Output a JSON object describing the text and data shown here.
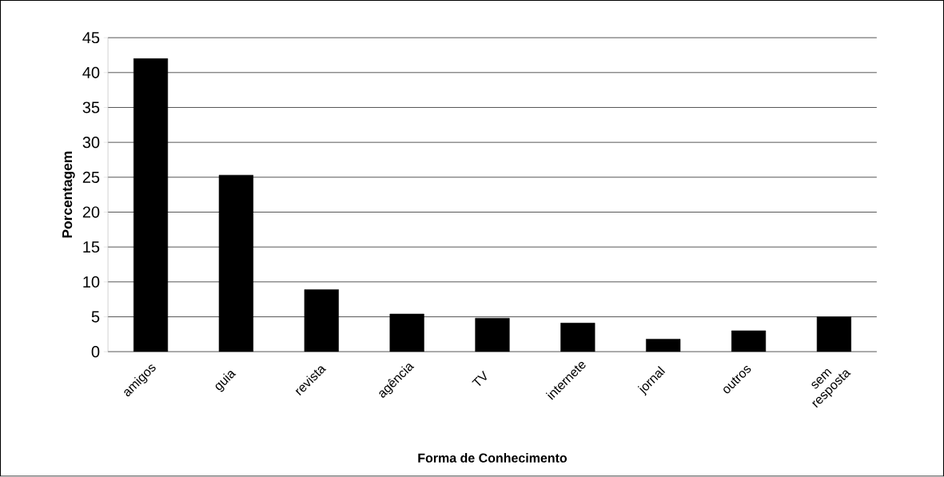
{
  "chart_data": {
    "type": "bar",
    "xlabel": "Forma de Conhecimento",
    "ylabel": "Porcentagem",
    "categories": [
      "amigos",
      "guia",
      "revista",
      "agência",
      "TV",
      "internete",
      "jornal",
      "outros",
      "sem resposta"
    ],
    "values": [
      42,
      25.3,
      8.9,
      5.4,
      4.8,
      4.1,
      1.8,
      3.0,
      5.0
    ],
    "color": "#000000",
    "ylim": [
      0,
      45
    ],
    "yticks": [
      0,
      5,
      10,
      15,
      20,
      25,
      30,
      35,
      40,
      45
    ],
    "grid": "y"
  }
}
